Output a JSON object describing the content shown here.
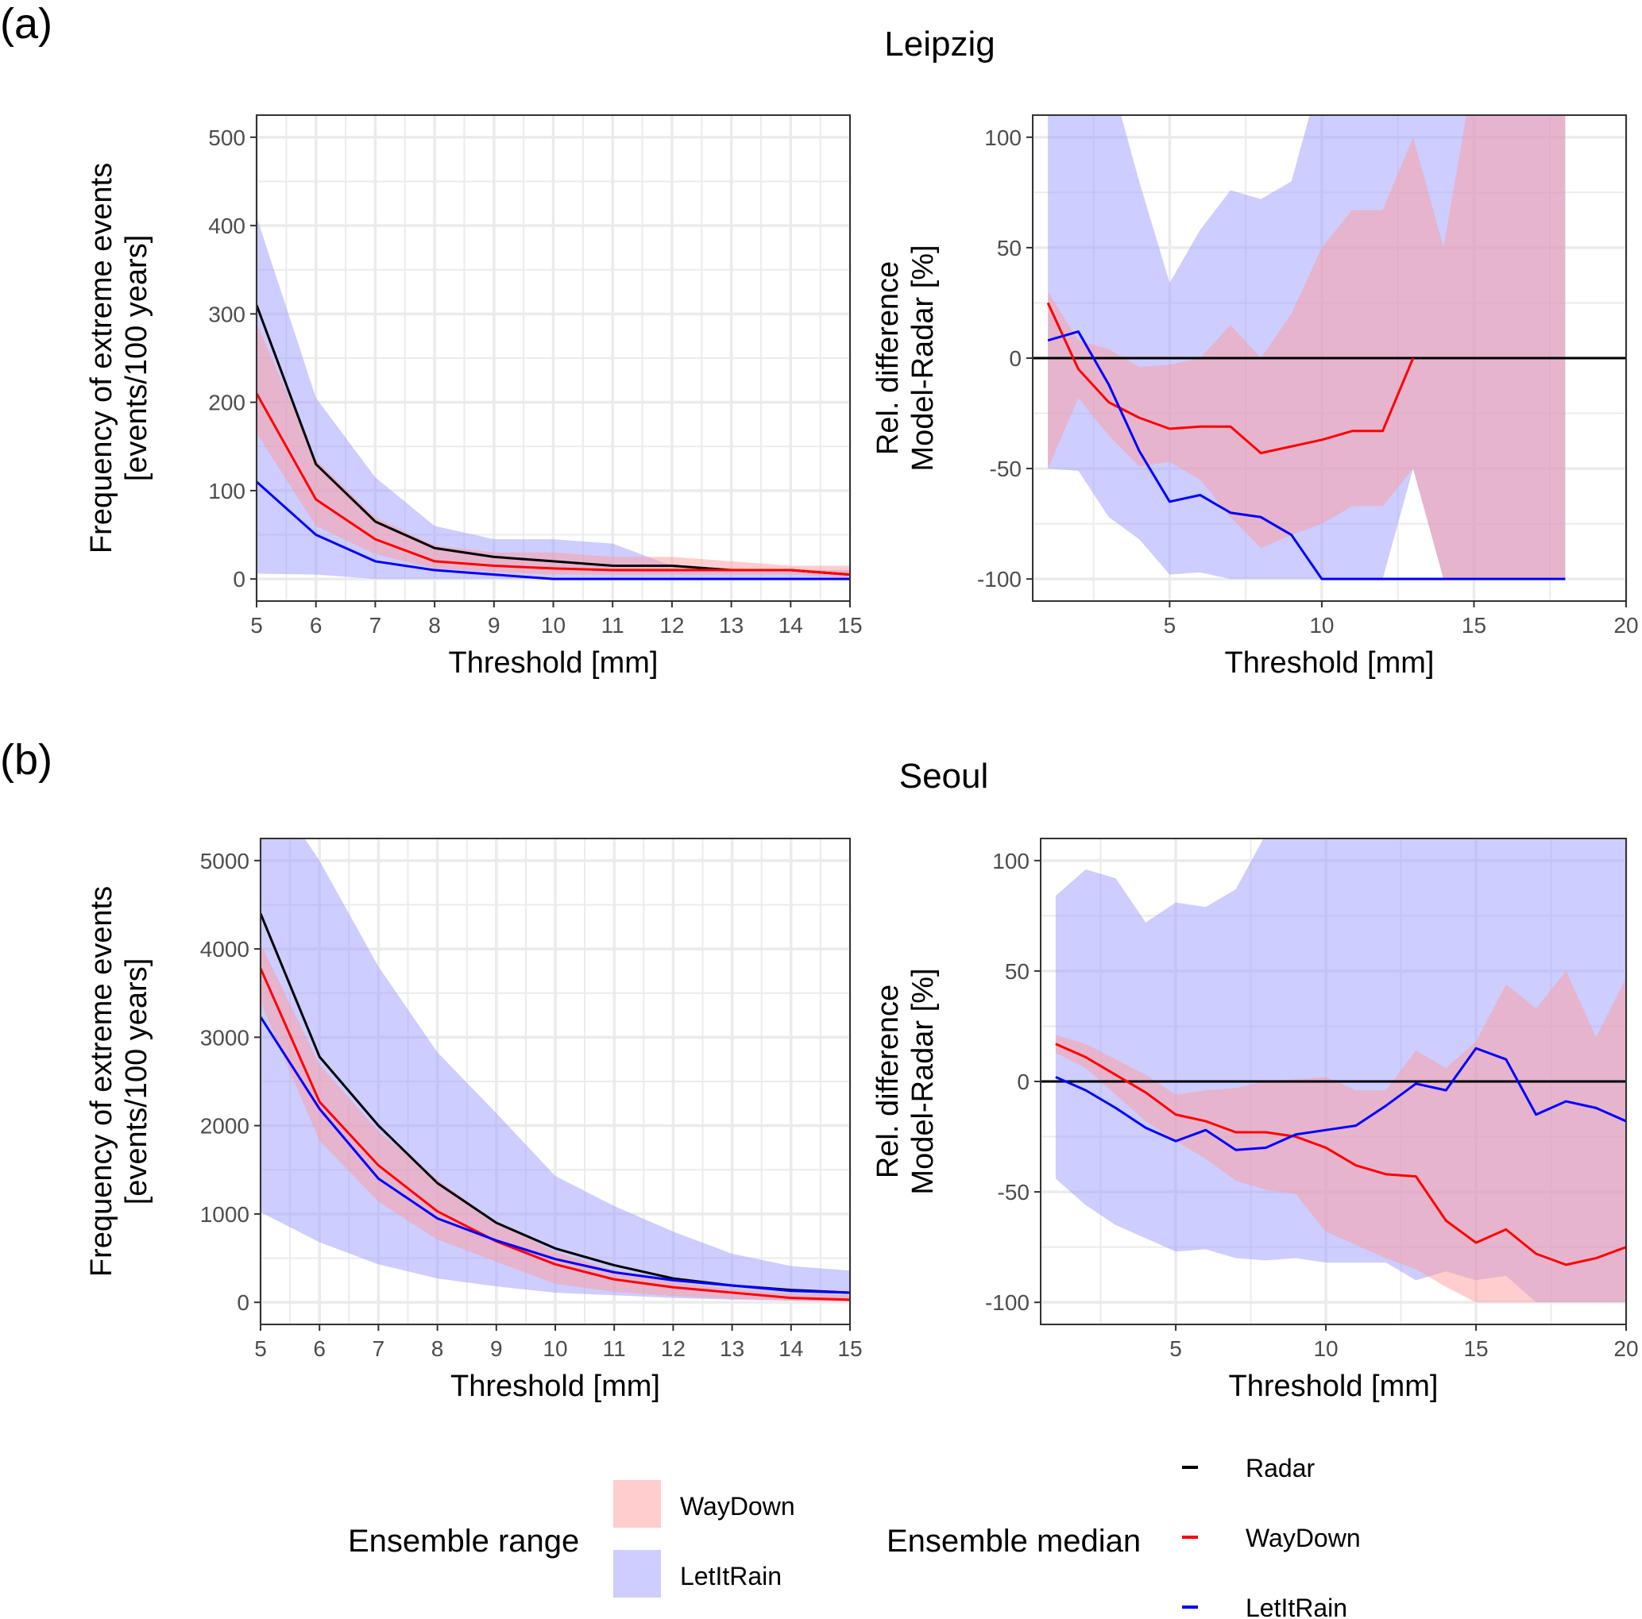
{
  "figure": {
    "panel_labels": [
      "(a)",
      "(b)"
    ],
    "legend": {
      "range_title": "Ensemble range",
      "range_items": [
        {
          "label": "WayDown",
          "color": "#ff9c9c"
        },
        {
          "label": "LetItRain",
          "color": "#9c9cff"
        }
      ],
      "median_title": "Ensemble median",
      "median_items": [
        {
          "label": "Radar",
          "color": "#000000"
        },
        {
          "label": "WayDown",
          "color": "#ff0000"
        },
        {
          "label": "LetItRain",
          "color": "#0000ff"
        }
      ]
    },
    "colors": {
      "radar": "#000000",
      "waydown_line": "#ff0000",
      "letitrain_line": "#0000ff",
      "waydown_band": "#ff9c9c",
      "letitrain_band": "#9c9cff",
      "grid": "#ebebeb"
    }
  },
  "chart_data": [
    {
      "id": "leipzig-frequency",
      "type": "line",
      "panel": "(a)",
      "title": "Leipzig",
      "xlabel": "Threshold [mm]",
      "ylabel": [
        "Frequency of extreme events",
        "[events/100 years]"
      ],
      "xlim": [
        5,
        15
      ],
      "ylim": [
        -25,
        525
      ],
      "xticks": [
        5,
        6,
        7,
        8,
        9,
        10,
        11,
        12,
        13,
        14,
        15
      ],
      "yticks": [
        0,
        100,
        200,
        300,
        400,
        500
      ],
      "grid": true,
      "x": [
        5,
        6,
        7,
        8,
        9,
        10,
        11,
        12,
        13,
        14,
        15
      ],
      "series": [
        {
          "name": "Radar",
          "kind": "median",
          "values": [
            310,
            130,
            65,
            35,
            25,
            20,
            15,
            15,
            10,
            10,
            5
          ]
        },
        {
          "name": "WayDown",
          "kind": "median",
          "values": [
            210,
            90,
            45,
            20,
            15,
            12,
            10,
            10,
            10,
            10,
            5
          ]
        },
        {
          "name": "LetItRain",
          "kind": "median",
          "values": [
            110,
            50,
            20,
            10,
            5,
            0,
            0,
            0,
            0,
            0,
            0
          ]
        }
      ],
      "bands": [
        {
          "name": "LetItRain",
          "lower": [
            6,
            5,
            0,
            0,
            0,
            0,
            0,
            0,
            0,
            0,
            0
          ],
          "upper": [
            410,
            205,
            115,
            60,
            45,
            45,
            40,
            15,
            12,
            10,
            10
          ]
        },
        {
          "name": "WayDown",
          "lower": [
            165,
            60,
            28,
            12,
            8,
            5,
            5,
            5,
            5,
            5,
            2
          ],
          "upper": [
            290,
            135,
            70,
            38,
            30,
            30,
            25,
            25,
            20,
            15,
            15
          ]
        }
      ]
    },
    {
      "id": "leipzig-reldiff",
      "type": "line",
      "panel": "(a)",
      "title": "",
      "xlabel": "Threshold [mm]",
      "ylabel": [
        "Rel. difference",
        "Model-Radar [%]"
      ],
      "xlim": [
        0.5,
        20
      ],
      "ylim": [
        -110,
        110
      ],
      "xticks": [
        5,
        10,
        15,
        20
      ],
      "yticks": [
        -100,
        -50,
        0,
        50,
        100
      ],
      "grid": true,
      "reference_line": 0,
      "x": [
        1,
        2,
        3,
        4,
        5,
        6,
        7,
        8,
        9,
        10,
        11,
        12,
        13,
        14,
        15,
        16,
        17,
        18
      ],
      "series": [
        {
          "name": "WayDown",
          "kind": "median",
          "values": [
            25,
            -5,
            -20,
            -27,
            -32,
            -31,
            -31,
            -43,
            -40,
            -37,
            -33,
            -33,
            0,
            null,
            null,
            null,
            null,
            null
          ]
        },
        {
          "name": "LetItRain",
          "kind": "median",
          "values": [
            8,
            12,
            -12,
            -42,
            -65,
            -62,
            -70,
            -72,
            -80,
            -100,
            -100,
            -100,
            -100,
            -100,
            -100,
            -100,
            -100,
            -100
          ]
        }
      ],
      "bands": [
        {
          "name": "LetItRain",
          "lower": [
            -50,
            -51,
            -72,
            -82,
            -98,
            -97,
            -100,
            -100,
            -100,
            -100,
            -100,
            -100,
            -50,
            -100,
            -100,
            -100,
            -100,
            -100
          ],
          "upper": [
            130,
            130,
            130,
            80,
            34,
            58,
            76,
            72,
            80,
            130,
            130,
            130,
            130,
            130,
            130,
            130,
            130,
            130
          ]
        },
        {
          "name": "WayDown",
          "lower": [
            -50,
            -18,
            -35,
            -49,
            -47,
            -55,
            -72,
            -86,
            -80,
            -75,
            -67,
            -67,
            -50,
            -100,
            -100,
            -100,
            -100,
            -100
          ],
          "upper": [
            30,
            8,
            4,
            -4,
            -3,
            0,
            15,
            0,
            20,
            50,
            67,
            67,
            100,
            50,
            130,
            130,
            130,
            130
          ]
        }
      ]
    },
    {
      "id": "seoul-frequency",
      "type": "line",
      "panel": "(b)",
      "title": "Seoul",
      "xlabel": "Threshold [mm]",
      "ylabel": [
        "Frequency of extreme events",
        "[events/100 years]"
      ],
      "xlim": [
        5,
        15
      ],
      "ylim": [
        -250,
        5250
      ],
      "xticks": [
        5,
        6,
        7,
        8,
        9,
        10,
        11,
        12,
        13,
        14,
        15
      ],
      "yticks": [
        0,
        1000,
        2000,
        3000,
        4000,
        5000
      ],
      "grid": true,
      "x": [
        5,
        6,
        7,
        8,
        9,
        10,
        11,
        12,
        13,
        14,
        15
      ],
      "series": [
        {
          "name": "Radar",
          "kind": "median",
          "values": [
            4400,
            2780,
            2000,
            1350,
            900,
            610,
            420,
            270,
            190,
            140,
            110
          ]
        },
        {
          "name": "WayDown",
          "kind": "median",
          "values": [
            3780,
            2270,
            1550,
            1030,
            690,
            430,
            260,
            170,
            110,
            50,
            30
          ]
        },
        {
          "name": "LetItRain",
          "kind": "median",
          "values": [
            3230,
            2190,
            1400,
            950,
            700,
            490,
            340,
            250,
            190,
            130,
            110
          ]
        }
      ],
      "bands": [
        {
          "name": "LetItRain",
          "lower": [
            1020,
            680,
            430,
            270,
            180,
            110,
            80,
            50,
            30,
            20,
            10
          ],
          "upper": [
            6000,
            5000,
            3800,
            2830,
            2140,
            1430,
            1090,
            800,
            550,
            410,
            360
          ]
        },
        {
          "name": "WayDown",
          "lower": [
            3400,
            1830,
            1140,
            710,
            460,
            210,
            120,
            70,
            40,
            20,
            10
          ],
          "upper": [
            4060,
            2690,
            1940,
            1390,
            910,
            570,
            360,
            230,
            150,
            100,
            80
          ]
        }
      ]
    },
    {
      "id": "seoul-reldiff",
      "type": "line",
      "panel": "(b)",
      "title": "",
      "xlabel": "Threshold [mm]",
      "ylabel": [
        "Rel. difference",
        "Model-Radar [%]"
      ],
      "xlim": [
        0.5,
        20
      ],
      "ylim": [
        -110,
        110
      ],
      "xticks": [
        5,
        10,
        15,
        20
      ],
      "yticks": [
        -100,
        -50,
        0,
        50,
        100
      ],
      "grid": true,
      "reference_line": 0,
      "x": [
        1,
        2,
        3,
        4,
        5,
        6,
        7,
        8,
        9,
        10,
        11,
        12,
        13,
        14,
        15,
        16,
        17,
        18,
        19,
        20
      ],
      "series": [
        {
          "name": "WayDown",
          "kind": "median",
          "values": [
            17,
            11,
            3,
            -5,
            -15,
            -18,
            -23,
            -23,
            -25,
            -30,
            -38,
            -42,
            -43,
            -63,
            -73,
            -67,
            -78,
            -83,
            -80,
            -75
          ]
        },
        {
          "name": "LetItRain",
          "kind": "median",
          "values": [
            2,
            -4,
            -12,
            -21,
            -27,
            -22,
            -31,
            -30,
            -24,
            -22,
            -20,
            -11,
            -1,
            -4,
            15,
            10,
            -15,
            -9,
            -12,
            -18
          ]
        }
      ],
      "bands": [
        {
          "name": "LetItRain",
          "lower": [
            -44,
            -56,
            -65,
            -71,
            -77,
            -76,
            -80,
            -81,
            -80,
            -82,
            -82,
            -82,
            -90,
            -86,
            -90,
            -88,
            -100,
            -100,
            -100,
            -100
          ],
          "upper": [
            84,
            96,
            92,
            72,
            81,
            79,
            87,
            112,
            130,
            130,
            130,
            130,
            130,
            130,
            130,
            130,
            130,
            130,
            130,
            130
          ]
        },
        {
          "name": "WayDown",
          "lower": [
            13,
            6,
            -6,
            -18,
            -27,
            -35,
            -45,
            -49,
            -51,
            -68,
            -74,
            -80,
            -85,
            -93,
            -100,
            -100,
            -100,
            -100,
            -100,
            -100
          ]
        },
        {
          "name": "WayDown",
          "upper": [
            21,
            17,
            10,
            3,
            -6,
            -4,
            -3,
            0,
            1,
            2,
            -4,
            -4,
            14,
            6,
            18,
            44,
            33,
            50,
            20,
            47
          ]
        }
      ]
    }
  ]
}
